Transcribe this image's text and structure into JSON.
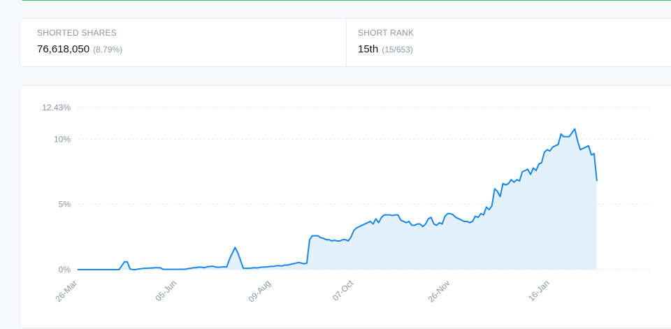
{
  "stats": {
    "shorted_shares_label": "SHORTED SHARES",
    "shorted_shares_value": "76,618,050",
    "shorted_shares_pct": "(8.79%)",
    "short_rank_label": "SHORT RANK",
    "short_rank_value": "15th",
    "short_rank_detail": "(15/653)"
  },
  "colors": {
    "line": "#1a86e8",
    "area": "#e3f1fc",
    "grid": "#e4e7ec",
    "accent_border": "#38c172"
  },
  "chart_data": {
    "type": "area",
    "title": "",
    "xlabel": "",
    "ylabel": "",
    "ylim": [
      0,
      12.43
    ],
    "y_ticks": [
      0,
      5,
      10,
      12.43
    ],
    "y_tick_labels": [
      "0%",
      "5%",
      "10%",
      "12.43%"
    ],
    "x_tick_labels": [
      "26-Mar",
      "05-Jun",
      "09-Aug",
      "07-Oct",
      "26-Nov",
      "16-Jan"
    ],
    "x_tick_positions": [
      0,
      36,
      70,
      100,
      135,
      171
    ],
    "x_max": 207,
    "grid": true,
    "series": [
      {
        "values": [
          0,
          0,
          0,
          0,
          0,
          0,
          0,
          0,
          0,
          0,
          0,
          0,
          0,
          0,
          0,
          0,
          0.3,
          0.6,
          0.6,
          0.05,
          0,
          0,
          0.05,
          0.07,
          0.1,
          0.1,
          0.12,
          0.13,
          0.15,
          0.15,
          0.14,
          0.02,
          0.02,
          0.02,
          0.02,
          0.02,
          0.02,
          0.03,
          0.03,
          0.03,
          0.08,
          0.1,
          0.15,
          0.15,
          0.2,
          0.18,
          0.15,
          0.23,
          0.25,
          0.26,
          0.2,
          0.18,
          0.2,
          0.22,
          0.2,
          0.8,
          1.25,
          1.7,
          1.3,
          0.7,
          0.1,
          0.1,
          0.1,
          0.12,
          0.15,
          0.13,
          0.17,
          0.2,
          0.2,
          0.22,
          0.25,
          0.25,
          0.3,
          0.3,
          0.28,
          0.35,
          0.35,
          0.4,
          0.45,
          0.5,
          0.55,
          0.5,
          0.45,
          0.5,
          2.3,
          2.6,
          2.6,
          2.6,
          2.45,
          2.4,
          2.3,
          2.3,
          2.2,
          2.25,
          2.2,
          2.2,
          2.3,
          2.3,
          2.2,
          2.5,
          3.0,
          3.2,
          3.3,
          3.4,
          3.5,
          3.6,
          3.7,
          3.5,
          3.9,
          3.6,
          4.0,
          4.2,
          4.2,
          4.2,
          4.15,
          4.2,
          4.2,
          3.8,
          3.7,
          3.6,
          3.7,
          3.4,
          3.4,
          3.5,
          3.5,
          3.3,
          3.5,
          3.9,
          4.0,
          3.5,
          3.4,
          3.6,
          3.5,
          4.1,
          4.3,
          4.3,
          4.2,
          4.0,
          3.9,
          3.8,
          3.7,
          3.7,
          3.6,
          3.7,
          4.1,
          4.0,
          4.3,
          4.2,
          4.8,
          4.6,
          4.9,
          6.2,
          6.0,
          5.6,
          6.6,
          6.5,
          6.6,
          6.9,
          6.7,
          6.9,
          6.8,
          7.5,
          7.6,
          7.7,
          7.3,
          7.8,
          7.6,
          8.1,
          8.2,
          9.0,
          9.2,
          9.1,
          9.4,
          9.5,
          9.6,
          10.4,
          10.2,
          10.2,
          10.2,
          10.5,
          10.8,
          9.9,
          9.2,
          9.3,
          9.4,
          9.5,
          8.8,
          8.9,
          6.8
        ]
      }
    ]
  }
}
